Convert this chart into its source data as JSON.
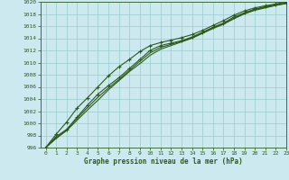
{
  "title": "Graphe pression niveau de la mer (hPa)",
  "background_color": "#cce9f0",
  "grid_color": "#99cccc",
  "line_color": "#2d5a1b",
  "xlim": [
    -0.5,
    23
  ],
  "ylim": [
    996,
    1020
  ],
  "xticks": [
    0,
    1,
    2,
    3,
    4,
    5,
    6,
    7,
    8,
    9,
    10,
    11,
    12,
    13,
    14,
    15,
    16,
    17,
    18,
    19,
    20,
    21,
    22,
    23
  ],
  "yticks": [
    996,
    998,
    1000,
    1002,
    1004,
    1006,
    1008,
    1010,
    1012,
    1014,
    1016,
    1018,
    1020
  ],
  "series": [
    [
      996.0,
      997.8,
      999.0,
      1001.0,
      1003.0,
      1004.8,
      1006.2,
      1007.5,
      1009.0,
      1010.5,
      1012.0,
      1012.8,
      1013.2,
      1013.6,
      1014.2,
      1015.0,
      1015.8,
      1016.5,
      1017.5,
      1018.2,
      1018.8,
      1019.2,
      1019.5,
      1019.8
    ],
    [
      996.0,
      997.5,
      998.8,
      1000.5,
      1002.2,
      1003.8,
      1005.5,
      1007.0,
      1008.5,
      1009.8,
      1011.2,
      1012.2,
      1012.8,
      1013.4,
      1014.0,
      1014.8,
      1015.6,
      1016.3,
      1017.2,
      1018.0,
      1018.6,
      1019.0,
      1019.4,
      1019.7
    ],
    [
      996.0,
      997.6,
      998.9,
      1000.8,
      1002.6,
      1004.3,
      1005.8,
      1007.2,
      1008.7,
      1010.2,
      1011.6,
      1012.5,
      1013.0,
      1013.5,
      1014.1,
      1014.9,
      1015.7,
      1016.4,
      1017.3,
      1018.1,
      1018.7,
      1019.1,
      1019.45,
      1019.75
    ],
    [
      996.0,
      998.2,
      1000.2,
      1002.5,
      1004.2,
      1006.0,
      1007.8,
      1009.3,
      1010.5,
      1011.8,
      1012.8,
      1013.3,
      1013.7,
      1014.1,
      1014.6,
      1015.3,
      1016.1,
      1016.9,
      1017.8,
      1018.5,
      1019.0,
      1019.35,
      1019.65,
      1019.95
    ]
  ],
  "marker_series": [
    0,
    3
  ],
  "marker": "+",
  "marker_size": 3.5,
  "marker_lw": 0.8,
  "line_width": 0.8,
  "xlabel_size": 5.5,
  "tick_labelsize": 4.5
}
